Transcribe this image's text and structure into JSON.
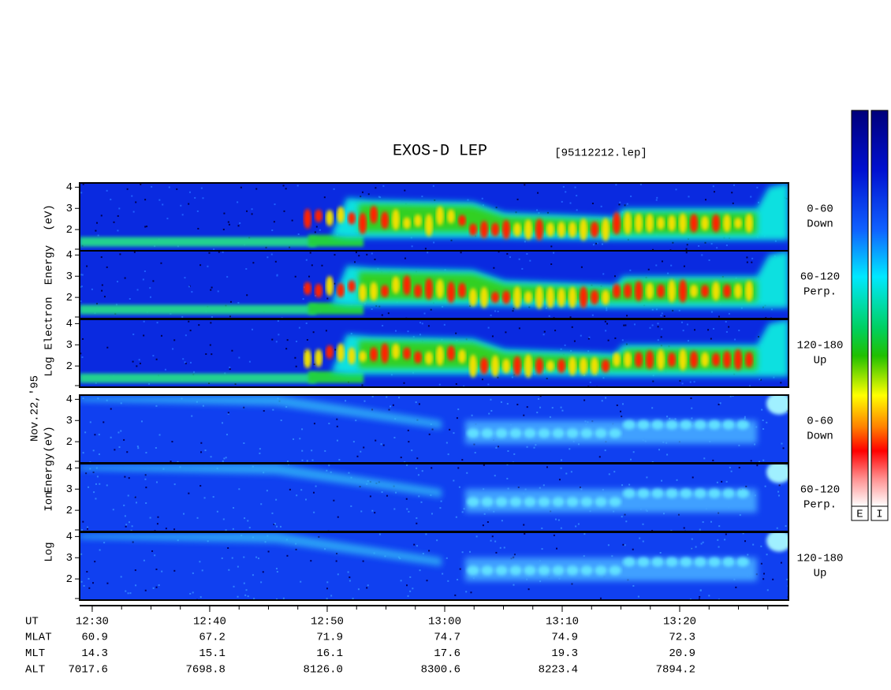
{
  "title": "EXOS-D LEP",
  "file": "[95112212.lep]",
  "date": "Nov.22,'95",
  "electron_label": [
    "Log",
    "Electron",
    "Energy",
    "(eV)"
  ],
  "ion_label": [
    "Log",
    "Ion",
    "Energy",
    "(eV)"
  ],
  "electron_panels": [
    [
      "0-60",
      "Down"
    ],
    [
      "60-120",
      "Perp."
    ],
    [
      "120-180",
      "Up"
    ]
  ],
  "ion_panels": [
    [
      "0-60",
      "Down"
    ],
    [
      "60-120",
      "Perp."
    ],
    [
      "120-180",
      "Up"
    ]
  ],
  "ylim": [
    1,
    4.2
  ],
  "yticks": [
    2,
    3,
    4
  ],
  "xlim": [
    28.93,
    89.26
  ],
  "xticks": [
    {
      "value": 30,
      "label": "12:30"
    },
    {
      "value": 40,
      "label": "12:40"
    },
    {
      "value": 50,
      "label": "12:50"
    },
    {
      "value": 60,
      "label": "13:00"
    },
    {
      "value": 70,
      "label": "13:10"
    },
    {
      "value": 80,
      "label": "13:20"
    }
  ],
  "ut_label": "UT",
  "ephemeris": [
    {
      "name": "MLAT",
      "values": [
        "60.9",
        "67.2",
        "71.9",
        "74.7",
        "74.9",
        "72.3"
      ]
    },
    {
      "name": "MLT",
      "values": [
        "14.3",
        "15.1",
        "16.1",
        "17.6",
        "19.3",
        "20.9"
      ]
    },
    {
      "name": "ALT",
      "values": [
        "7017.6",
        "7698.8",
        "8126.0",
        "8300.6",
        "8223.4",
        "7894.2"
      ]
    }
  ],
  "colorbar_labels": [
    "E",
    "I"
  ]
}
